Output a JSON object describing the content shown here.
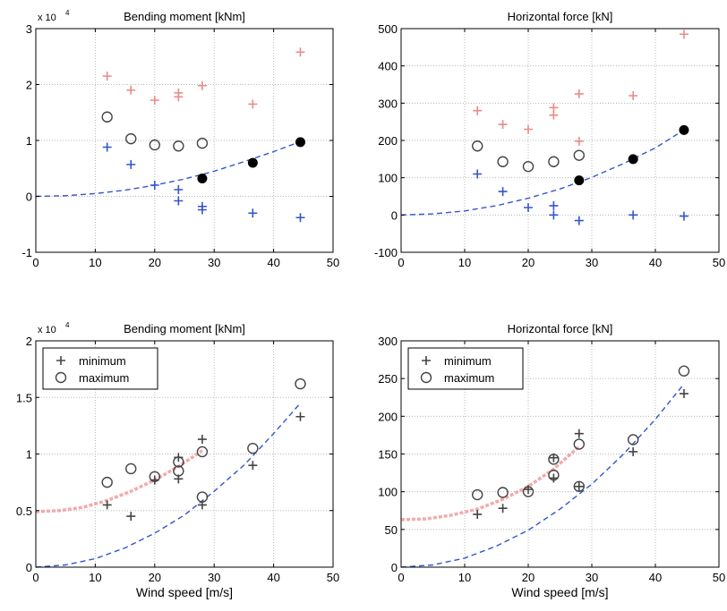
{
  "chart_data": [
    {
      "type": "scatter",
      "title": "Bending moment [kNm]",
      "xlabel": "",
      "y_multiplier": "x 10",
      "y_multiplier_exp": "4",
      "xlim": [
        0,
        50
      ],
      "ylim": [
        -1,
        3
      ],
      "xticks": [
        0,
        10,
        20,
        30,
        40,
        50
      ],
      "yticks": [
        -1,
        0,
        1,
        2,
        3
      ],
      "grid": true,
      "series": [
        {
          "marker": "plus",
          "color": "#ee8888",
          "x": [
            12,
            16,
            20,
            24,
            24,
            28,
            36.5,
            44.5
          ],
          "y": [
            2.15,
            1.9,
            1.72,
            1.85,
            1.78,
            1.98,
            1.65,
            2.58
          ]
        },
        {
          "marker": "circle",
          "color": "#444444",
          "x": [
            12,
            16,
            20,
            24,
            28
          ],
          "y": [
            1.42,
            1.03,
            0.92,
            0.9,
            0.95
          ]
        },
        {
          "marker": "dot",
          "color": "#000000",
          "x": [
            28,
            36.5,
            44.5
          ],
          "y": [
            0.32,
            0.6,
            0.97
          ]
        },
        {
          "marker": "plus",
          "color": "#3355cc",
          "x": [
            12,
            16,
            20,
            24,
            24,
            28,
            28,
            36.5,
            44.5
          ],
          "y": [
            0.88,
            0.57,
            0.2,
            0.12,
            -0.08,
            -0.18,
            -0.24,
            -0.3,
            -0.38
          ]
        }
      ],
      "curves": [
        {
          "color": "#3355cc",
          "x": [
            0,
            5,
            10,
            15,
            20,
            25,
            30,
            35,
            40,
            44.5
          ],
          "y": [
            0,
            0.012,
            0.05,
            0.11,
            0.2,
            0.31,
            0.45,
            0.62,
            0.8,
            0.98
          ]
        }
      ]
    },
    {
      "type": "scatter",
      "title": "Horizontal force [kN]",
      "xlabel": "",
      "xlim": [
        0,
        50
      ],
      "ylim": [
        -100,
        500
      ],
      "xticks": [
        0,
        10,
        20,
        30,
        40,
        50
      ],
      "yticks": [
        -100,
        0,
        100,
        200,
        300,
        400,
        500
      ],
      "grid": true,
      "series": [
        {
          "marker": "plus",
          "color": "#ee8888",
          "x": [
            12,
            16,
            20,
            24,
            24,
            28,
            28,
            36.5,
            44.5
          ],
          "y": [
            280,
            243,
            230,
            288,
            268,
            325,
            198,
            320,
            485
          ]
        },
        {
          "marker": "circle",
          "color": "#444444",
          "x": [
            12,
            16,
            20,
            24,
            28
          ],
          "y": [
            185,
            143,
            130,
            143,
            160
          ]
        },
        {
          "marker": "dot",
          "color": "#000000",
          "x": [
            28,
            36.5,
            44.5
          ],
          "y": [
            93,
            150,
            228
          ]
        },
        {
          "marker": "plus",
          "color": "#3355cc",
          "x": [
            12,
            16,
            20,
            24,
            24,
            28,
            36.5,
            44.5
          ],
          "y": [
            110,
            63,
            20,
            25,
            0,
            -15,
            0,
            -3
          ]
        }
      ],
      "curves": [
        {
          "color": "#3355cc",
          "x": [
            0,
            5,
            10,
            15,
            20,
            25,
            30,
            35,
            40,
            44.5
          ],
          "y": [
            0,
            3,
            11,
            25,
            45,
            70,
            101,
            138,
            180,
            228
          ]
        }
      ]
    },
    {
      "type": "scatter",
      "title": "Bending moment [kNm]",
      "xlabel": "Wind speed [m/s]",
      "y_multiplier": "x 10",
      "y_multiplier_exp": "4",
      "xlim": [
        0,
        50
      ],
      "ylim": [
        0,
        2
      ],
      "xticks": [
        0,
        10,
        20,
        30,
        40,
        50
      ],
      "yticks": [
        0,
        0.5,
        1,
        1.5,
        2
      ],
      "grid": true,
      "legend": {
        "position": "top-left",
        "entries": [
          {
            "label": "minimum",
            "marker": "plus"
          },
          {
            "label": "maximum",
            "marker": "circle"
          }
        ]
      },
      "series": [
        {
          "name": "minimum",
          "marker": "plus",
          "color": "#444444",
          "x": [
            12,
            16,
            20,
            24,
            24,
            28,
            28,
            36.5,
            44.5
          ],
          "y": [
            0.55,
            0.45,
            0.77,
            0.97,
            0.78,
            1.13,
            0.55,
            0.9,
            1.33
          ]
        },
        {
          "name": "maximum",
          "marker": "circle",
          "color": "#444444",
          "x": [
            12,
            16,
            20,
            24,
            24,
            28,
            28,
            36.5,
            44.5
          ],
          "y": [
            0.75,
            0.87,
            0.8,
            0.93,
            0.85,
            1.02,
            0.62,
            1.05,
            1.62
          ]
        }
      ],
      "curves": [
        {
          "color": "#ee8888",
          "x": [
            0,
            4,
            8,
            12,
            16,
            20,
            24,
            28
          ],
          "y": [
            0.49,
            0.5,
            0.53,
            0.59,
            0.67,
            0.77,
            0.89,
            1.03
          ]
        },
        {
          "color": "#3355cc",
          "x": [
            0,
            5,
            10,
            15,
            20,
            25,
            30,
            35,
            40,
            44.5
          ],
          "y": [
            0,
            0.02,
            0.075,
            0.17,
            0.3,
            0.46,
            0.67,
            0.9,
            1.18,
            1.45
          ]
        }
      ]
    },
    {
      "type": "scatter",
      "title": "Horizontal force [kN]",
      "xlabel": "Wind speed [m/s]",
      "xlim": [
        0,
        50
      ],
      "ylim": [
        0,
        300
      ],
      "xticks": [
        0,
        10,
        20,
        30,
        40,
        50
      ],
      "yticks": [
        0,
        50,
        100,
        150,
        200,
        250,
        300
      ],
      "grid": true,
      "legend": {
        "position": "top-left",
        "entries": [
          {
            "label": "minimum",
            "marker": "plus"
          },
          {
            "label": "maximum",
            "marker": "circle"
          }
        ]
      },
      "series": [
        {
          "name": "minimum",
          "marker": "plus",
          "color": "#444444",
          "x": [
            12,
            16,
            20,
            24,
            24,
            28,
            28,
            36.5,
            44.5
          ],
          "y": [
            70,
            78,
            103,
            145,
            118,
            177,
            107,
            153,
            230
          ]
        },
        {
          "name": "maximum",
          "marker": "circle",
          "color": "#444444",
          "x": [
            12,
            16,
            20,
            24,
            24,
            28,
            28,
            36.5,
            44.5
          ],
          "y": [
            96,
            99,
            100,
            143,
            122,
            163,
            107,
            169,
            260
          ]
        }
      ],
      "curves": [
        {
          "color": "#ee8888",
          "x": [
            0,
            4,
            8,
            12,
            16,
            20,
            24,
            28
          ],
          "y": [
            63,
            64,
            69,
            77,
            90,
            107,
            130,
            160
          ]
        },
        {
          "color": "#3355cc",
          "x": [
            0,
            5,
            10,
            15,
            20,
            25,
            30,
            35,
            40,
            44.5
          ],
          "y": [
            0,
            3,
            12,
            28,
            49,
            77,
            110,
            150,
            196,
            243
          ]
        }
      ]
    }
  ]
}
